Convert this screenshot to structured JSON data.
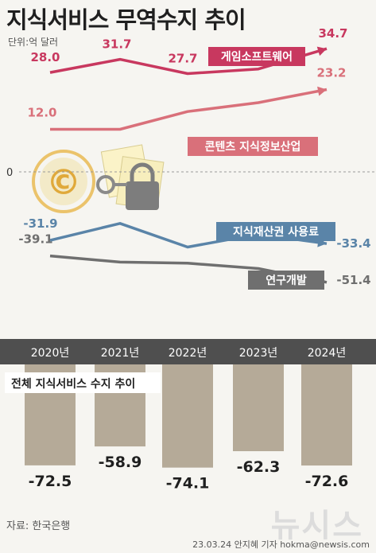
{
  "title": "지식서비스 무역수지 추이",
  "unit": "단위:억 달러",
  "zero_label": "0",
  "source": "자료: 한국은행",
  "credit": "23.03.24 안지혜 기자 hokma@newsis.com",
  "watermark": "뉴시스",
  "chart_data": [
    {
      "type": "line",
      "x": [
        "2020년",
        "2021년",
        "2022년",
        "2023년",
        "2024년"
      ],
      "series": [
        {
          "name": "게임소프트웨어",
          "values": [
            28.0,
            31.7,
            27.7,
            29.0,
            34.7
          ],
          "labels": [
            "28.0",
            "31.7",
            "27.7",
            "",
            "34.7"
          ],
          "color": "#c8385f"
        },
        {
          "name": "콘텐츠 지식정보산업",
          "values": [
            12.0,
            12.0,
            17.0,
            19.5,
            23.2
          ],
          "labels": [
            "12.0",
            "",
            "",
            "",
            "23.2"
          ],
          "color": "#d9707a"
        },
        {
          "name": "지식재산권 사용료",
          "values": [
            -31.9,
            -24.0,
            -35.0,
            -29.0,
            -33.4
          ],
          "labels": [
            "-31.9",
            "",
            "",
            "",
            "-33.4"
          ],
          "color": "#5a84a8"
        },
        {
          "name": "연구개발",
          "values": [
            -39.1,
            -42.0,
            -42.5,
            -45.0,
            -51.4
          ],
          "labels": [
            "-39.1",
            "",
            "",
            "",
            "-51.4"
          ],
          "color": "#6f6f6f"
        }
      ]
    },
    {
      "type": "bar",
      "title": "전체 지식서비스 수지 추이",
      "categories": [
        "2020년",
        "2021년",
        "2022년",
        "2023년",
        "2024년"
      ],
      "values": [
        -72.5,
        -58.9,
        -74.1,
        -62.3,
        -72.6
      ],
      "labels": [
        "-72.5",
        "-58.9",
        "-74.1",
        "-62.3",
        "-72.6"
      ],
      "color": "#b5aa98"
    }
  ]
}
